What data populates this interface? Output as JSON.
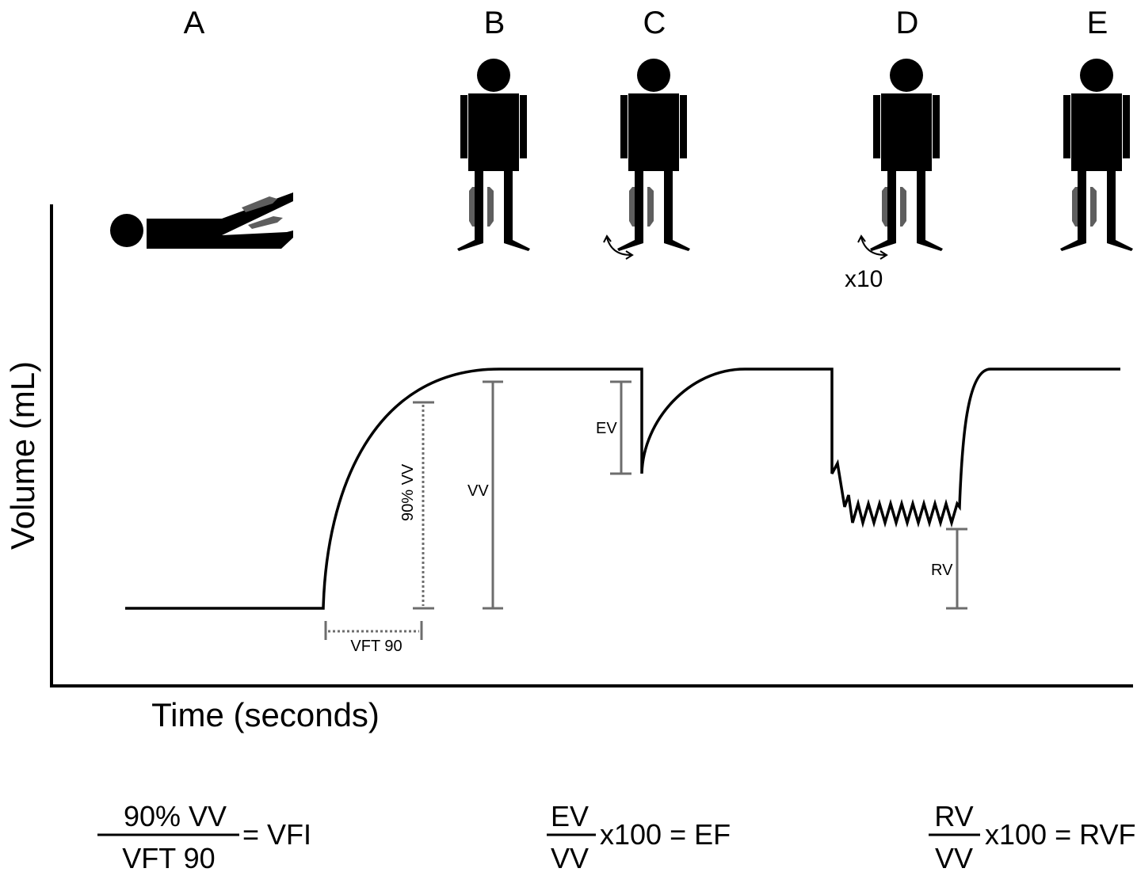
{
  "stages": [
    {
      "letter": "A",
      "posture": "supine"
    },
    {
      "letter": "B",
      "posture": "standing"
    },
    {
      "letter": "C",
      "posture": "standing",
      "motion": "single calf raise"
    },
    {
      "letter": "D",
      "posture": "standing",
      "motion": "repeated calf raises",
      "repeat_label": "x10"
    },
    {
      "letter": "E",
      "posture": "standing"
    }
  ],
  "axes": {
    "y_label": "Volume (mL)",
    "x_label": "Time (seconds)"
  },
  "measures": {
    "vft90": "VFT 90",
    "pct90": "90% VV",
    "vv": "VV",
    "ev": "EV",
    "rv": "RV"
  },
  "formulas": [
    {
      "numerator": "90% VV",
      "denominator": "VFT 90",
      "result": "= VFI"
    },
    {
      "numerator": "EV",
      "denominator": "VV",
      "result": "x100 = EF"
    },
    {
      "numerator": "RV",
      "denominator": "VV",
      "result": "x100 = RVF"
    }
  ],
  "colors": {
    "trace": "#000000",
    "measure_bar": "#6d6d6d",
    "cuff": "#5e5e5e"
  }
}
